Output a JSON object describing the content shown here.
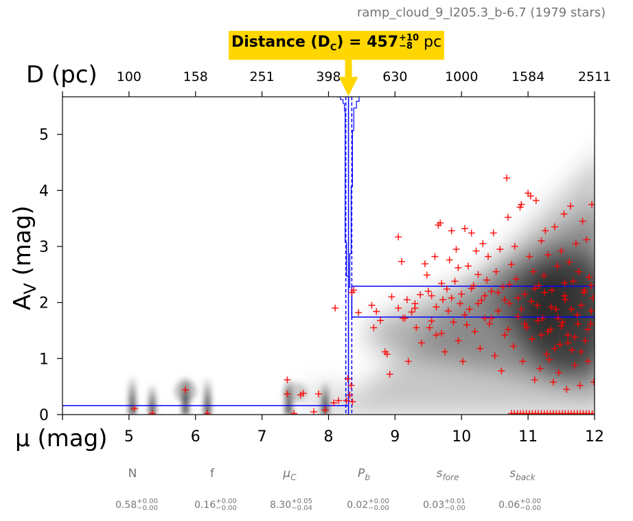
{
  "header": {
    "cloud_label": "ramp_cloud_9_l205.3_b-6.7 (1979 stars)"
  },
  "banner": {
    "label": "Distance (D",
    "sub": "C",
    "eq": ") = 457",
    "plus": "+10",
    "minus": "−8",
    "unit": " pc",
    "color": "#FFD600"
  },
  "chart_data": {
    "type": "scatter",
    "xlabel": "μ (mag)",
    "ylabel": "A",
    "ylabel_sub": "V",
    "ylabel_unit": " (mag)",
    "top_axis_label": "D (pc)",
    "xlim": [
      4,
      12
    ],
    "ylim": [
      0,
      5.67
    ],
    "x_ticks": [
      "5",
      "6",
      "7",
      "8",
      "9",
      "10",
      "11",
      "12"
    ],
    "y_ticks": [
      "0",
      "1",
      "2",
      "3",
      "4",
      "5"
    ],
    "top_ticks": [
      "100",
      "158",
      "251",
      "398",
      "630",
      "1000",
      "1584",
      "2511"
    ],
    "top_tick_positions_mu": [
      5,
      6,
      7,
      8,
      9,
      10,
      11,
      12
    ],
    "distance_mu": 8.3,
    "distance_mu_lo": 8.26,
    "distance_mu_hi": 8.35,
    "foreground_av": 0.16,
    "background_av_low": 1.74,
    "background_av_high": 2.29,
    "colors": {
      "stars": "#FF0000",
      "model": "#0000FF",
      "arrow": "#FFD600"
    },
    "star_points": [
      [
        5.08,
        0.11
      ],
      [
        5.35,
        0.02
      ],
      [
        5.85,
        0.44
      ],
      [
        6.18,
        0.02
      ],
      [
        7.38,
        0.62
      ],
      [
        7.38,
        0.37
      ],
      [
        7.48,
        0.02
      ],
      [
        7.58,
        0.35
      ],
      [
        7.62,
        0.38
      ],
      [
        7.78,
        0.05
      ],
      [
        7.85,
        0.37
      ],
      [
        7.95,
        0.08
      ],
      [
        8.08,
        0.21
      ],
      [
        8.15,
        0.25
      ],
      [
        8.27,
        0.25
      ],
      [
        8.29,
        0.64
      ],
      [
        8.32,
        0.35
      ],
      [
        8.34,
        0.52
      ],
      [
        8.36,
        0.23
      ],
      [
        8.1,
        1.9
      ],
      [
        8.35,
        2.18
      ],
      [
        8.38,
        2.22
      ],
      [
        8.45,
        1.82
      ],
      [
        8.65,
        1.95
      ],
      [
        8.68,
        1.55
      ],
      [
        8.72,
        1.84
      ],
      [
        8.78,
        1.68
      ],
      [
        8.85,
        1.12
      ],
      [
        8.88,
        1.08
      ],
      [
        8.92,
        0.72
      ],
      [
        8.95,
        2.1
      ],
      [
        9.05,
        1.9
      ],
      [
        9.05,
        3.17
      ],
      [
        9.1,
        2.73
      ],
      [
        9.12,
        1.72
      ],
      [
        9.18,
        2.05
      ],
      [
        9.2,
        0.95
      ],
      [
        9.25,
        1.83
      ],
      [
        9.3,
        1.9
      ],
      [
        9.32,
        1.55
      ],
      [
        9.38,
        2.14
      ],
      [
        9.4,
        1.28
      ],
      [
        9.45,
        2.69
      ],
      [
        9.48,
        2.49
      ],
      [
        9.5,
        2.2
      ],
      [
        9.52,
        1.55
      ],
      [
        9.55,
        1.67
      ],
      [
        9.6,
        2.82
      ],
      [
        9.62,
        1.92
      ],
      [
        9.65,
        3.38
      ],
      [
        9.68,
        3.42
      ],
      [
        9.7,
        1.45
      ],
      [
        9.72,
        2.05
      ],
      [
        9.75,
        1.12
      ],
      [
        9.78,
        2.24
      ],
      [
        9.8,
        1.85
      ],
      [
        9.82,
        2.76
      ],
      [
        9.85,
        3.28
      ],
      [
        9.88,
        1.65
      ],
      [
        9.9,
        2.38
      ],
      [
        9.92,
        2.95
      ],
      [
        9.95,
        1.32
      ],
      [
        9.98,
        1.98
      ],
      [
        10.0,
        2.15
      ],
      [
        10.02,
        0.95
      ],
      [
        10.05,
        3.32
      ],
      [
        10.08,
        1.6
      ],
      [
        10.1,
        2.65
      ],
      [
        10.12,
        1.88
      ],
      [
        10.15,
        3.24
      ],
      [
        10.18,
        2.3
      ],
      [
        10.2,
        1.48
      ],
      [
        10.22,
        2.92
      ],
      [
        10.25,
        2.5
      ],
      [
        10.28,
        1.18
      ],
      [
        10.3,
        2.04
      ],
      [
        10.32,
        3.05
      ],
      [
        10.35,
        1.72
      ],
      [
        10.38,
        2.4
      ],
      [
        10.4,
        2.82
      ],
      [
        10.42,
        1.62
      ],
      [
        10.45,
        2.2
      ],
      [
        10.48,
        3.24
      ],
      [
        10.5,
        1.05
      ],
      [
        10.52,
        2.55
      ],
      [
        10.55,
        1.85
      ],
      [
        10.58,
        2.95
      ],
      [
        10.6,
        0.78
      ],
      [
        10.62,
        2.28
      ],
      [
        10.65,
        1.42
      ],
      [
        10.68,
        4.22
      ],
      [
        10.7,
        3.52
      ],
      [
        10.72,
        1.98
      ],
      [
        10.75,
        2.68
      ],
      [
        10.78,
        1.22
      ],
      [
        10.8,
        3.0
      ],
      [
        10.82,
        2.42
      ],
      [
        10.85,
        1.75
      ],
      [
        10.88,
        3.7
      ],
      [
        10.9,
        3.75
      ],
      [
        10.92,
        0.95
      ],
      [
        10.95,
        2.15
      ],
      [
        10.98,
        1.55
      ],
      [
        11.0,
        3.95
      ],
      [
        11.02,
        2.82
      ],
      [
        11.04,
        3.9
      ],
      [
        11.06,
        1.35
      ],
      [
        11.08,
        2.55
      ],
      [
        11.1,
        0.62
      ],
      [
        11.12,
        3.82
      ],
      [
        11.14,
        1.95
      ],
      [
        11.16,
        2.3
      ],
      [
        11.18,
        0.82
      ],
      [
        11.2,
        3.1
      ],
      [
        11.22,
        1.72
      ],
      [
        11.24,
        2.48
      ],
      [
        11.26,
        3.28
      ],
      [
        11.28,
        1.08
      ],
      [
        11.3,
        2.85
      ],
      [
        11.32,
        0.98
      ],
      [
        11.34,
        1.52
      ],
      [
        11.36,
        2.22
      ],
      [
        11.38,
        0.58
      ],
      [
        11.4,
        3.35
      ],
      [
        11.42,
        1.88
      ],
      [
        11.44,
        2.65
      ],
      [
        11.46,
        0.75
      ],
      [
        11.48,
        1.25
      ],
      [
        11.5,
        2.92
      ],
      [
        11.52,
        1.65
      ],
      [
        11.54,
        3.58
      ],
      [
        11.56,
        2.05
      ],
      [
        11.58,
        0.45
      ],
      [
        11.6,
        1.42
      ],
      [
        11.62,
        2.72
      ],
      [
        11.64,
        3.72
      ],
      [
        11.66,
        1.15
      ],
      [
        11.68,
        2.38
      ],
      [
        11.7,
        0.88
      ],
      [
        11.72,
        3.05
      ],
      [
        11.74,
        1.78
      ],
      [
        11.76,
        2.55
      ],
      [
        11.78,
        0.52
      ],
      [
        11.8,
        1.95
      ],
      [
        11.82,
        3.45
      ],
      [
        11.84,
        2.18
      ],
      [
        11.86,
        1.32
      ],
      [
        11.88,
        3.12
      ],
      [
        11.9,
        0.95
      ],
      [
        11.92,
        2.45
      ],
      [
        11.94,
        1.62
      ],
      [
        11.96,
        3.75
      ],
      [
        11.98,
        2.08
      ],
      [
        11.99,
        0.58
      ],
      [
        9.62,
        1.42
      ],
      [
        9.7,
        2.34
      ],
      [
        9.95,
        2.62
      ],
      [
        10.25,
        1.98
      ],
      [
        10.35,
        2.12
      ],
      [
        10.55,
        2.18
      ],
      [
        10.72,
        2.32
      ],
      [
        10.85,
        2.08
      ],
      [
        10.95,
        1.62
      ],
      [
        11.05,
        2.02
      ],
      [
        11.15,
        1.68
      ],
      [
        11.25,
        2.18
      ],
      [
        11.35,
        1.92
      ],
      [
        11.45,
        1.72
      ],
      [
        11.55,
        2.12
      ],
      [
        11.65,
        1.88
      ],
      [
        11.75,
        1.62
      ],
      [
        11.85,
        2.22
      ],
      [
        11.95,
        1.85
      ],
      [
        11.3,
        1.48
      ],
      [
        11.5,
        1.58
      ],
      [
        11.7,
        1.38
      ],
      [
        11.9,
        1.52
      ],
      [
        11.6,
        1.28
      ],
      [
        11.4,
        1.18
      ],
      [
        11.8,
        1.12
      ],
      [
        11.2,
        1.42
      ],
      [
        10.9,
        1.88
      ],
      [
        10.7,
        1.52
      ],
      [
        10.45,
        1.72
      ],
      [
        10.15,
        2.25
      ],
      [
        9.85,
        2.08
      ],
      [
        9.55,
        2.12
      ],
      [
        9.3,
        1.98
      ],
      [
        9.15,
        1.72
      ],
      [
        10.05,
        1.78
      ],
      [
        10.65,
        2.05
      ],
      [
        11.1,
        2.25
      ],
      [
        11.55,
        2.35
      ],
      [
        11.95,
        2.3
      ]
    ],
    "floor_points_range": [
      10.75,
      12.0
    ],
    "parameters": [
      {
        "name": "N",
        "value": "0.58",
        "plus": "+0.00",
        "minus": "−0.00"
      },
      {
        "name": "f",
        "value": "0.16",
        "plus": "+0.00",
        "minus": "−0.00"
      },
      {
        "name": "μ",
        "name_sub": "C",
        "value": "8.30",
        "plus": "+0.05",
        "minus": "−0.04"
      },
      {
        "name": "P",
        "name_sub": "b",
        "value": "0.02",
        "plus": "+0.00",
        "minus": "−0.00"
      },
      {
        "name": "s",
        "name_sub": "fore",
        "value": "0.03",
        "plus": "+0.01",
        "minus": "−0.00"
      },
      {
        "name": "s",
        "name_sub": "back",
        "value": "0.06",
        "plus": "+0.00",
        "minus": "−0.00"
      }
    ]
  }
}
